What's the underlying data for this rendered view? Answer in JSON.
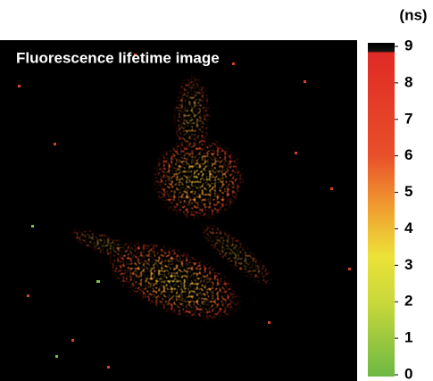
{
  "chart_data": {
    "type": "image",
    "title": "Fluorescence lifetime image",
    "colorbar_label": "(ns)",
    "clim": [
      0,
      9
    ],
    "cticks": [
      0,
      1,
      2,
      3,
      4,
      5,
      6,
      7,
      8,
      9
    ]
  }
}
